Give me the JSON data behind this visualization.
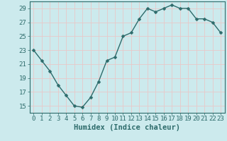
{
  "x": [
    0,
    1,
    2,
    3,
    4,
    5,
    6,
    7,
    8,
    9,
    10,
    11,
    12,
    13,
    14,
    15,
    16,
    17,
    18,
    19,
    20,
    21,
    22,
    23
  ],
  "y": [
    23,
    21.5,
    20,
    18,
    16.5,
    15,
    14.8,
    16.2,
    18.5,
    21.5,
    22,
    25,
    25.5,
    27.5,
    29,
    28.5,
    29,
    29.5,
    29,
    29,
    27.5,
    27.5,
    27,
    25.5
  ],
  "line_color": "#2d6b6b",
  "marker_color": "#2d6b6b",
  "bg_color": "#cceaed",
  "grid_color": "#e8c8c8",
  "xlabel": "Humidex (Indice chaleur)",
  "ylim": [
    14,
    30
  ],
  "xlim": [
    -0.5,
    23.5
  ],
  "yticks": [
    15,
    17,
    19,
    21,
    23,
    25,
    27,
    29
  ],
  "xticks": [
    0,
    1,
    2,
    3,
    4,
    5,
    6,
    7,
    8,
    9,
    10,
    11,
    12,
    13,
    14,
    15,
    16,
    17,
    18,
    19,
    20,
    21,
    22,
    23
  ],
  "xlabel_fontsize": 7.5,
  "tick_fontsize": 6.5,
  "marker_size": 2.5,
  "line_width": 1.0
}
